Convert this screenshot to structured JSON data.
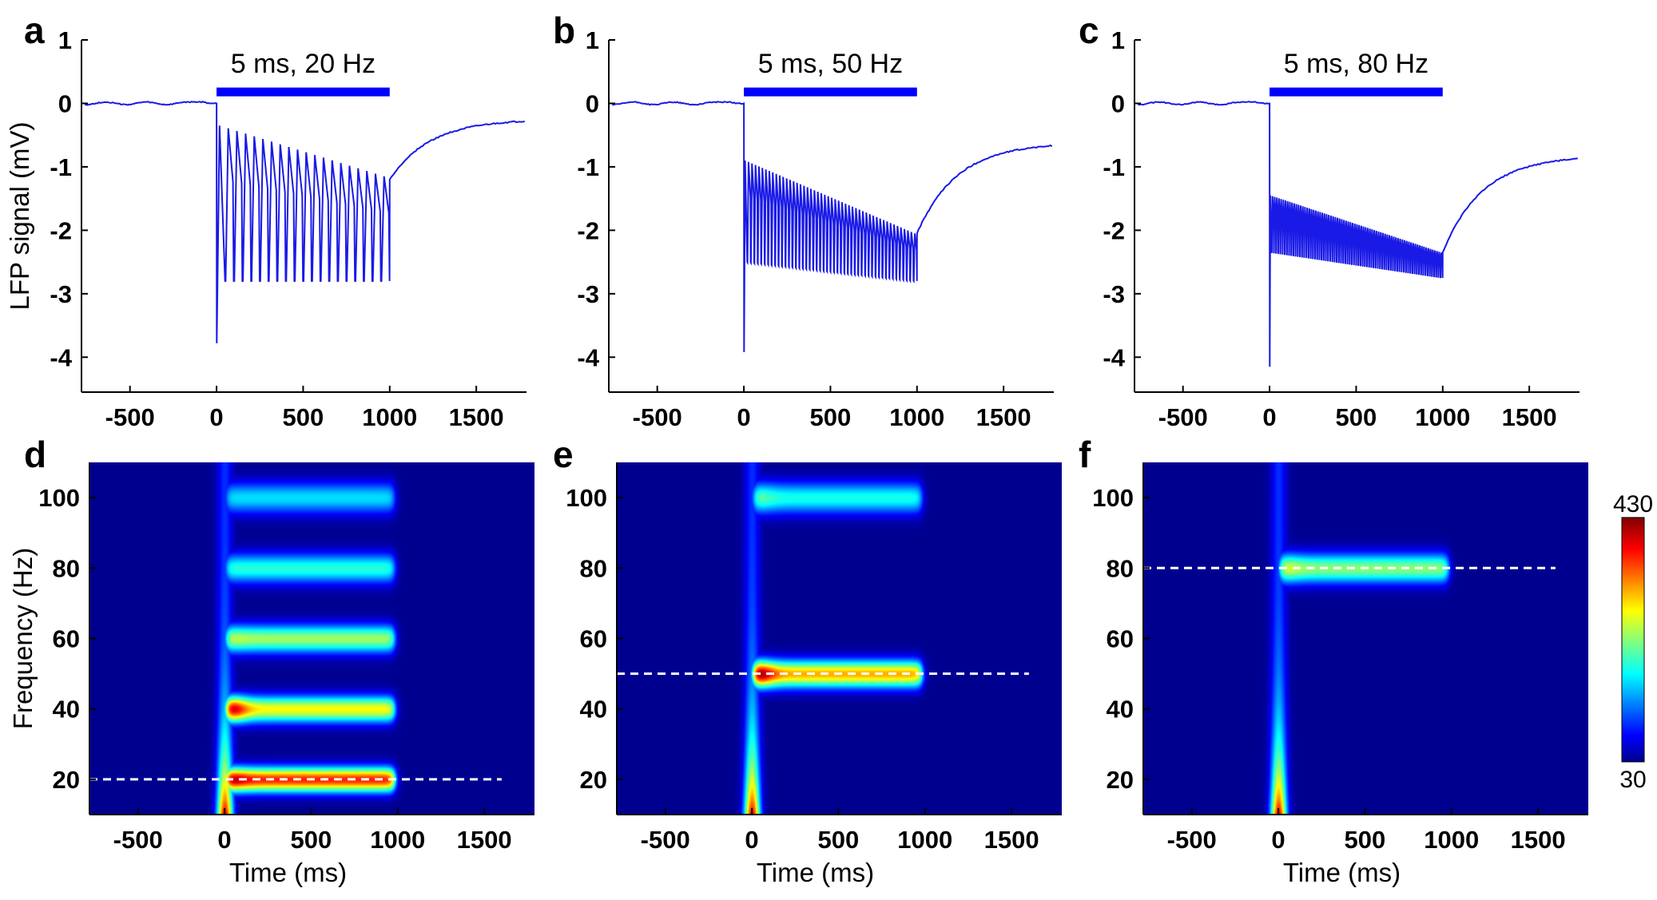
{
  "figure": {
    "colors": {
      "trace": "#1a1ae6",
      "stim_bar": "#0000ff",
      "dash": "#ffffff",
      "background": "#00008f"
    }
  },
  "chart_data": [
    {
      "id": "a",
      "type": "line",
      "panel_letter": "a",
      "title": "",
      "xlabel": "",
      "ylabel": "LFP signal (mV)",
      "xlim": [
        -780,
        1790
      ],
      "ylim": [
        -4.55,
        1.0
      ],
      "xticks": [
        -500,
        0,
        500,
        1000,
        1500
      ],
      "yticks": [
        1,
        0,
        -1,
        -2,
        -3,
        -4
      ],
      "stimulus": {
        "label": "5 ms, 20 Hz",
        "start": 0,
        "end": 1000,
        "level": 0.18
      },
      "series": [
        {
          "name": "LFP",
          "freq_hz": 20,
          "initial_min": -3.78,
          "trough_level": -2.8,
          "peak_start": -0.35,
          "peak_end": -1.15,
          "recovery_start": -1.2,
          "end_value": -0.25
        }
      ]
    },
    {
      "id": "b",
      "type": "line",
      "panel_letter": "b",
      "title": "",
      "xlabel": "",
      "ylabel": "",
      "xlim": [
        -780,
        1790
      ],
      "ylim": [
        -4.55,
        1.0
      ],
      "xticks": [
        -500,
        0,
        500,
        1000,
        1500
      ],
      "yticks": [
        1,
        0,
        -1,
        -2,
        -3,
        -4
      ],
      "stimulus": {
        "label": "5 ms, 50 Hz",
        "start": 0,
        "end": 1000,
        "level": 0.18
      },
      "series": [
        {
          "name": "LFP",
          "freq_hz": 50,
          "initial_min": -3.92,
          "trough_start": -2.5,
          "trough_end": -2.8,
          "peak_start": -0.9,
          "peak_end": -2.05,
          "recovery_start": -2.05,
          "end_value": -0.62
        }
      ]
    },
    {
      "id": "c",
      "type": "line",
      "panel_letter": "c",
      "title": "",
      "xlabel": "",
      "ylabel": "",
      "xlim": [
        -780,
        1790
      ],
      "ylim": [
        -4.55,
        1.0
      ],
      "xticks": [
        -500,
        0,
        500,
        1000,
        1500
      ],
      "yticks": [
        1,
        0,
        -1,
        -2,
        -3,
        -4
      ],
      "stimulus": {
        "label": "5 ms, 80 Hz",
        "start": 0,
        "end": 1000,
        "level": 0.18
      },
      "series": [
        {
          "name": "LFP",
          "freq_hz": 80,
          "initial_min": -4.15,
          "trough_start": -2.35,
          "trough_end": -2.75,
          "peak_start": -1.45,
          "peak_end": -2.35,
          "recovery_start": -2.35,
          "end_value": -0.82
        }
      ]
    },
    {
      "id": "d",
      "type": "heatmap",
      "panel_letter": "d",
      "title": "",
      "xlabel": "Time (ms)",
      "ylabel": "Frequency (Hz)",
      "xlim": [
        -780,
        1790
      ],
      "ylim": [
        10,
        110
      ],
      "xticks": [
        -500,
        0,
        500,
        1000,
        1500
      ],
      "yticks": [
        20,
        40,
        60,
        80,
        100
      ],
      "stim_freq_hz": 20,
      "dashed_line": {
        "y": 20,
        "x_end": 1600
      },
      "bands": [
        {
          "freq": 20,
          "intensity": 0.84,
          "onset_intensity": 0.95
        },
        {
          "freq": 40,
          "intensity": 0.62,
          "onset_intensity": 0.92
        },
        {
          "freq": 60,
          "intensity": 0.52,
          "onset_intensity": 0.55
        },
        {
          "freq": 80,
          "intensity": 0.4,
          "onset_intensity": 0.4
        },
        {
          "freq": 100,
          "intensity": 0.33,
          "onset_intensity": 0.33
        }
      ]
    },
    {
      "id": "e",
      "type": "heatmap",
      "panel_letter": "e",
      "title": "",
      "xlabel": "Time (ms)",
      "ylabel": "",
      "xlim": [
        -780,
        1790
      ],
      "ylim": [
        10,
        110
      ],
      "xticks": [
        -500,
        0,
        500,
        1000,
        1500
      ],
      "yticks": [
        20,
        40,
        60,
        80,
        100
      ],
      "stim_freq_hz": 50,
      "dashed_line": {
        "y": 50,
        "x_end": 1600
      },
      "bands": [
        {
          "freq": 50,
          "intensity": 0.7,
          "onset_intensity": 0.98
        },
        {
          "freq": 100,
          "intensity": 0.38,
          "onset_intensity": 0.45
        }
      ]
    },
    {
      "id": "f",
      "type": "heatmap",
      "panel_letter": "f",
      "title": "",
      "xlabel": "Time (ms)",
      "ylabel": "",
      "xlim": [
        -780,
        1790
      ],
      "ylim": [
        10,
        110
      ],
      "xticks": [
        -500,
        0,
        500,
        1000,
        1500
      ],
      "yticks": [
        20,
        40,
        60,
        80,
        100
      ],
      "stim_freq_hz": 80,
      "dashed_line": {
        "y": 80,
        "x_end": 1600
      },
      "bands": [
        {
          "freq": 80,
          "intensity": 0.5,
          "onset_intensity": 0.58
        }
      ]
    }
  ],
  "colorbar": {
    "max_label": "430",
    "min_label": "30",
    "range": [
      30,
      430
    ],
    "colormap": "jet"
  }
}
